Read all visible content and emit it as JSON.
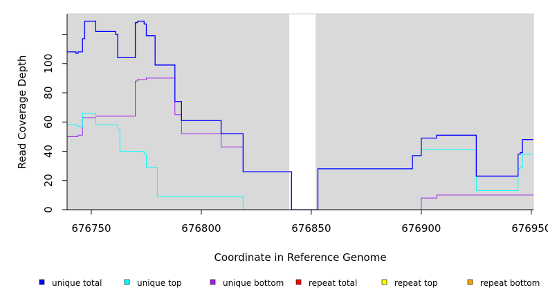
{
  "chart_data": {
    "type": "line",
    "title": "",
    "xlabel": "Coordinate in Reference Genome",
    "ylabel": "Read Coverage Depth",
    "xlim": [
      676739,
      676951
    ],
    "ylim": [
      0,
      134
    ],
    "x_ticks": [
      676750,
      676800,
      676850,
      676900,
      676950
    ],
    "x_tick_labels": [
      "676750",
      "676800",
      "676850",
      "676900",
      "676950"
    ],
    "y_ticks": [
      0,
      20,
      40,
      60,
      80,
      100,
      120
    ],
    "y_tick_labels": [
      "0",
      "20",
      "40",
      "60",
      "80",
      "100",
      ""
    ],
    "plot_background": "#d9d9d9",
    "unshaded_region": [
      676840,
      676852
    ],
    "legend_position": "bottom",
    "series": [
      {
        "name": "unique total",
        "color": "#0000ff",
        "steps": [
          [
            676739,
            108
          ],
          [
            676743,
            107
          ],
          [
            676744,
            108
          ],
          [
            676746,
            117
          ],
          [
            676747,
            129
          ],
          [
            676751,
            129
          ],
          [
            676752,
            122
          ],
          [
            676761,
            120
          ],
          [
            676762,
            104
          ],
          [
            676769,
            104
          ],
          [
            676770,
            128
          ],
          [
            676771,
            129
          ],
          [
            676774,
            127
          ],
          [
            676775,
            119
          ],
          [
            676778,
            119
          ],
          [
            676779,
            99
          ],
          [
            676787,
            99
          ],
          [
            676788,
            74
          ],
          [
            676791,
            61
          ],
          [
            676808,
            61
          ],
          [
            676809,
            52
          ],
          [
            676818,
            52
          ],
          [
            676819,
            26
          ],
          [
            676840,
            26
          ],
          [
            676841,
            0
          ],
          [
            676852,
            0
          ],
          [
            676853,
            28
          ],
          [
            676895,
            28
          ],
          [
            676896,
            37
          ],
          [
            676899,
            37
          ],
          [
            676900,
            49
          ],
          [
            676906,
            49
          ],
          [
            676907,
            51
          ],
          [
            676924,
            51
          ],
          [
            676925,
            23
          ],
          [
            676943,
            23
          ],
          [
            676944,
            38
          ],
          [
            676945,
            39
          ],
          [
            676946,
            48
          ],
          [
            676951,
            48
          ]
        ]
      },
      {
        "name": "unique top",
        "color": "#00ffff",
        "steps": [
          [
            676739,
            58
          ],
          [
            676743,
            58
          ],
          [
            676744,
            57
          ],
          [
            676746,
            66
          ],
          [
            676752,
            58
          ],
          [
            676761,
            58
          ],
          [
            676762,
            55
          ],
          [
            676763,
            40
          ],
          [
            676773,
            40
          ],
          [
            676774,
            38
          ],
          [
            676775,
            29
          ],
          [
            676779,
            29
          ],
          [
            676780,
            9
          ],
          [
            676818,
            9
          ],
          [
            676819,
            0
          ],
          [
            676852,
            0
          ],
          [
            676853,
            28
          ],
          [
            676895,
            28
          ],
          [
            676896,
            37
          ],
          [
            676899,
            37
          ],
          [
            676900,
            41
          ],
          [
            676924,
            41
          ],
          [
            676925,
            13
          ],
          [
            676943,
            13
          ],
          [
            676944,
            28
          ],
          [
            676945,
            29
          ],
          [
            676946,
            38
          ],
          [
            676951,
            38
          ]
        ]
      },
      {
        "name": "unique bottom",
        "color": "#a020f0",
        "steps": [
          [
            676739,
            50
          ],
          [
            676743,
            50
          ],
          [
            676744,
            51
          ],
          [
            676746,
            63
          ],
          [
            676751,
            63
          ],
          [
            676752,
            64
          ],
          [
            676769,
            64
          ],
          [
            676770,
            88
          ],
          [
            676771,
            89
          ],
          [
            676774,
            89
          ],
          [
            676775,
            90
          ],
          [
            676787,
            90
          ],
          [
            676788,
            65
          ],
          [
            676791,
            52
          ],
          [
            676808,
            52
          ],
          [
            676809,
            43
          ],
          [
            676818,
            43
          ],
          [
            676819,
            26
          ],
          [
            676840,
            26
          ],
          [
            676841,
            0
          ],
          [
            676899,
            0
          ],
          [
            676900,
            8
          ],
          [
            676906,
            8
          ],
          [
            676907,
            10
          ],
          [
            676951,
            10
          ]
        ]
      },
      {
        "name": "repeat total",
        "color": "#ff0000",
        "steps": [
          [
            676739,
            0
          ],
          [
            676951,
            0
          ]
        ]
      },
      {
        "name": "repeat top",
        "color": "#ffff00",
        "steps": [
          [
            676739,
            0
          ],
          [
            676951,
            0
          ]
        ]
      },
      {
        "name": "repeat bottom",
        "color": "#ffa500",
        "steps": [
          [
            676739,
            0
          ],
          [
            676951,
            0
          ]
        ]
      }
    ]
  }
}
